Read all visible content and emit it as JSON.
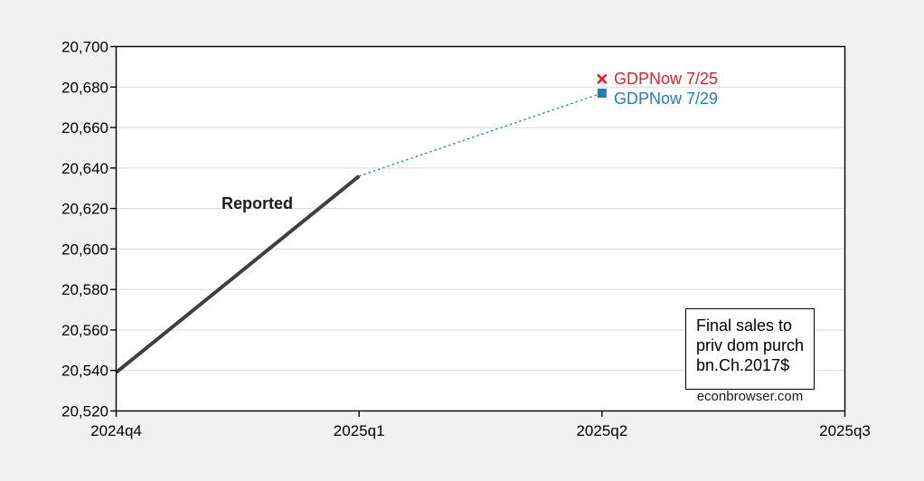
{
  "colors": {
    "page_background": "#f1f1f1",
    "plot_background": "#ffffff",
    "gridline": "#d9d9d9",
    "axis": "#000000",
    "reported_line": "#3f3f3f",
    "gdpnow_725_red": "#ee1c25",
    "gdpnow_729_blue": "#1f7ec2"
  },
  "chart_data": {
    "type": "line",
    "title": "",
    "xlabel": "",
    "ylabel": "",
    "x_categories": [
      "2024q4",
      "2025q1",
      "2025q2",
      "2025q3"
    ],
    "ylim": [
      20520,
      20700
    ],
    "y_tick_step": 20,
    "grid": "horizontal",
    "y_ticks": [
      {
        "value": 20700,
        "label": "20,700"
      },
      {
        "value": 20680,
        "label": "20,680"
      },
      {
        "value": 20660,
        "label": "20,660"
      },
      {
        "value": 20640,
        "label": "20,640"
      },
      {
        "value": 20620,
        "label": "20,620"
      },
      {
        "value": 20600,
        "label": "20,600"
      },
      {
        "value": 20580,
        "label": "20,580"
      },
      {
        "value": 20560,
        "label": "20,560"
      },
      {
        "value": 20540,
        "label": "20,540"
      },
      {
        "value": 20520,
        "label": "20,520"
      }
    ],
    "series": [
      {
        "name": "Reported",
        "style": "solid",
        "color": "#3f3f3f",
        "width": 4,
        "x_index": [
          0,
          1
        ],
        "values": [
          20539,
          20636
        ]
      },
      {
        "name": "GDPNow projection path",
        "style": "dashed",
        "color": "#1f7ec2",
        "width": 1.3,
        "x_index": [
          1,
          2
        ],
        "values": [
          20636,
          20677
        ]
      }
    ],
    "points": [
      {
        "name": "gdpnow-7-25",
        "label": "GDPNow 7/25",
        "marker": "xmark",
        "color": "#ee1c25",
        "x_index": 2,
        "value": 20684
      },
      {
        "name": "gdpnow-7-29",
        "label": "GDPNow 7/29",
        "marker": "square",
        "color": "#1f7ec2",
        "x_index": 2,
        "value": 20677
      }
    ],
    "annotations": {
      "reported": "Reported",
      "note_line1": "Final sales to",
      "note_line2": "priv dom purch",
      "note_line3": "bn.Ch.2017$",
      "credit": "econbrowser.com"
    }
  }
}
